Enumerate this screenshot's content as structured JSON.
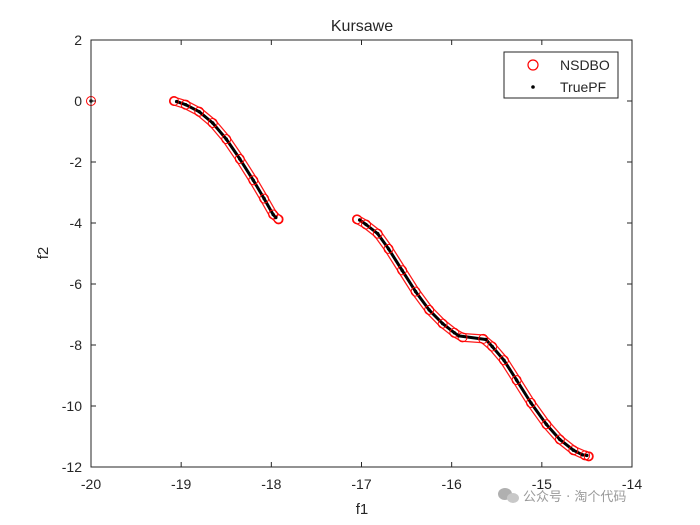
{
  "chart_data": {
    "type": "scatter",
    "title": "Kursawe",
    "xlabel": "f1",
    "ylabel": "f2",
    "xlim": [
      -20,
      -14
    ],
    "ylim": [
      -12,
      2
    ],
    "xticks": [
      -20,
      -19,
      -18,
      -17,
      -16,
      -15,
      -14
    ],
    "yticks": [
      -12,
      -10,
      -8,
      -6,
      -4,
      -2,
      0,
      2
    ],
    "xtick_labels": [
      "-20",
      "-19",
      "-18",
      "-17",
      "-16",
      "-15",
      "-14"
    ],
    "ytick_labels": [
      "-12",
      "-10",
      "-8",
      "-6",
      "-4",
      "-2",
      "0",
      "2"
    ],
    "grid": false,
    "legend_position": "top-right",
    "series": [
      {
        "name": "NSDBO",
        "marker": "open circle",
        "color": "#ff0000",
        "points": [
          [
            -20.0,
            0.0
          ],
          [
            -19.08,
            0.0
          ],
          [
            -18.95,
            -0.12
          ],
          [
            -18.8,
            -0.35
          ],
          [
            -18.65,
            -0.72
          ],
          [
            -18.5,
            -1.25
          ],
          [
            -18.35,
            -1.9
          ],
          [
            -18.2,
            -2.6
          ],
          [
            -18.08,
            -3.2
          ],
          [
            -17.98,
            -3.72
          ],
          [
            -17.92,
            -3.88
          ],
          [
            -17.05,
            -3.88
          ],
          [
            -16.95,
            -4.05
          ],
          [
            -16.82,
            -4.35
          ],
          [
            -16.7,
            -4.85
          ],
          [
            -16.55,
            -5.55
          ],
          [
            -16.4,
            -6.25
          ],
          [
            -16.25,
            -6.85
          ],
          [
            -16.1,
            -7.3
          ],
          [
            -15.97,
            -7.6
          ],
          [
            -15.88,
            -7.75
          ],
          [
            -15.65,
            -7.8
          ],
          [
            -15.55,
            -8.05
          ],
          [
            -15.42,
            -8.5
          ],
          [
            -15.28,
            -9.15
          ],
          [
            -15.12,
            -9.9
          ],
          [
            -14.95,
            -10.6
          ],
          [
            -14.8,
            -11.1
          ],
          [
            -14.65,
            -11.45
          ],
          [
            -14.52,
            -11.62
          ],
          [
            -14.48,
            -11.65
          ]
        ]
      },
      {
        "name": "TruePF",
        "marker": "dot",
        "color": "#000000",
        "points": [
          [
            -20.0,
            0.0
          ],
          [
            -19.05,
            -0.02
          ],
          [
            -18.95,
            -0.12
          ],
          [
            -18.8,
            -0.35
          ],
          [
            -18.65,
            -0.72
          ],
          [
            -18.5,
            -1.25
          ],
          [
            -18.35,
            -1.9
          ],
          [
            -18.2,
            -2.6
          ],
          [
            -18.08,
            -3.2
          ],
          [
            -17.98,
            -3.72
          ],
          [
            -17.95,
            -3.82
          ],
          [
            -17.02,
            -3.9
          ],
          [
            -16.95,
            -4.05
          ],
          [
            -16.82,
            -4.35
          ],
          [
            -16.7,
            -4.85
          ],
          [
            -16.55,
            -5.55
          ],
          [
            -16.4,
            -6.25
          ],
          [
            -16.25,
            -6.85
          ],
          [
            -16.1,
            -7.3
          ],
          [
            -15.97,
            -7.6
          ],
          [
            -15.92,
            -7.7
          ],
          [
            -15.62,
            -7.82
          ],
          [
            -15.55,
            -8.05
          ],
          [
            -15.42,
            -8.5
          ],
          [
            -15.28,
            -9.15
          ],
          [
            -15.12,
            -9.9
          ],
          [
            -14.95,
            -10.6
          ],
          [
            -14.8,
            -11.1
          ],
          [
            -14.65,
            -11.45
          ],
          [
            -14.55,
            -11.6
          ],
          [
            -14.5,
            -11.62
          ]
        ]
      }
    ]
  },
  "watermark": "公众号 · 淘个代码"
}
